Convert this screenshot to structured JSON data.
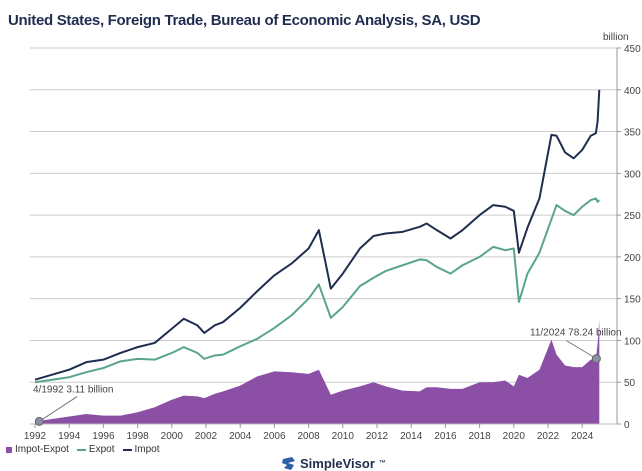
{
  "title": "United States, Foreign Trade, Bureau of Economic Analysis, SA, USD",
  "colors": {
    "import": "#1f2d4f",
    "export": "#5aa58a",
    "deficit": "#8b4fa6",
    "grid": "#cccccc"
  },
  "logo": {
    "text": "SimpleVisor",
    "tm": "™"
  },
  "chart_data": {
    "type": "line+area",
    "title": "United States, Foreign Trade, Bureau of Economic Analysis, SA, USD",
    "ylabel": "billion",
    "ylim": [
      0,
      450
    ],
    "yticks": [
      0,
      50,
      100,
      150,
      200,
      250,
      300,
      350,
      400,
      450
    ],
    "xlim": [
      1992,
      2025
    ],
    "xticks": [
      "1992",
      "1994",
      "1996",
      "1998",
      "2000",
      "2002",
      "2004",
      "2006",
      "2008",
      "2010",
      "2012",
      "2014",
      "2016",
      "2018",
      "2020",
      "2022",
      "2024"
    ],
    "grid": true,
    "legend_position": "bottom-left",
    "x": [
      1992.0,
      1993.0,
      1994.0,
      1995.0,
      1996.0,
      1997.0,
      1998.0,
      1999.0,
      2000.0,
      2000.7,
      2001.5,
      2001.9,
      2002.5,
      2003.0,
      2004.0,
      2005.0,
      2006.0,
      2007.0,
      2008.0,
      2008.6,
      2009.3,
      2010.0,
      2011.0,
      2011.8,
      2012.5,
      2013.5,
      2014.5,
      2014.9,
      2015.5,
      2016.3,
      2017.0,
      2018.0,
      2018.8,
      2019.5,
      2020.0,
      2020.3,
      2020.8,
      2021.5,
      2022.2,
      2022.5,
      2023.0,
      2023.5,
      2024.0,
      2024.5,
      2024.8,
      2024.9,
      2025.0
    ],
    "series": [
      {
        "name": "Impot-Expot",
        "type": "area",
        "values": [
          3,
          6,
          9,
          12,
          10,
          10,
          14,
          20,
          29,
          34,
          33,
          31,
          36,
          39,
          46,
          57,
          63,
          62,
          60,
          65,
          35,
          40,
          45,
          50,
          45,
          40,
          39,
          44,
          44,
          42,
          42,
          50,
          50,
          52,
          45,
          59,
          55,
          65,
          101,
          83,
          70,
          68,
          68,
          77,
          78,
          96,
          125
        ]
      },
      {
        "name": "Expot",
        "type": "line",
        "values": [
          50,
          53,
          56,
          62,
          67,
          75,
          78,
          77,
          85,
          92,
          85,
          78,
          82,
          83,
          93,
          102,
          115,
          130,
          150,
          167,
          127,
          140,
          165,
          175,
          183,
          190,
          197,
          196,
          188,
          180,
          190,
          200,
          212,
          208,
          210,
          146,
          180,
          205,
          245,
          262,
          255,
          250,
          260,
          268,
          270,
          266,
          268
        ]
      },
      {
        "name": "Impot",
        "type": "line",
        "values": [
          53,
          59,
          65,
          74,
          77,
          85,
          92,
          97,
          114,
          126,
          118,
          109,
          118,
          122,
          139,
          159,
          178,
          192,
          210,
          232,
          162,
          180,
          210,
          225,
          228,
          230,
          236,
          240,
          232,
          222,
          232,
          250,
          262,
          260,
          255,
          205,
          235,
          270,
          346,
          345,
          325,
          318,
          328,
          345,
          348,
          362,
          400
        ]
      }
    ],
    "annotations": [
      {
        "label": "4/1992 3.11 billion",
        "x": 1992.25,
        "y": 3.11
      },
      {
        "label": "11/2024 78.24 billion",
        "x": 2024.83,
        "y": 78.24
      }
    ]
  }
}
